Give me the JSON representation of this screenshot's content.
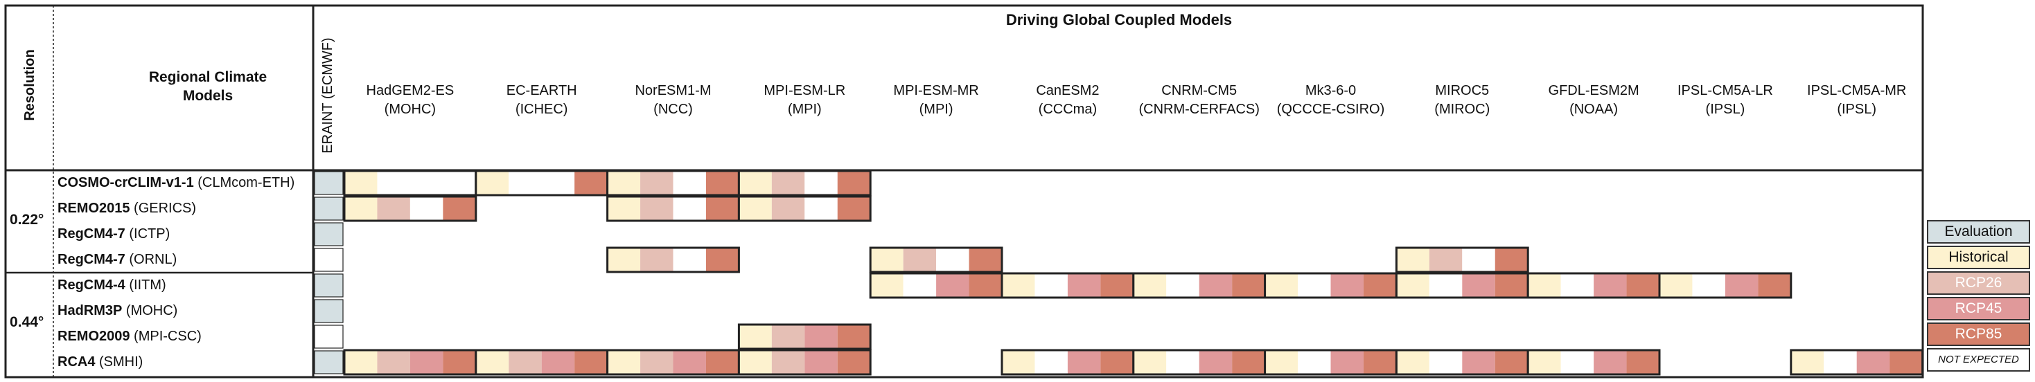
{
  "header": {
    "driving_title": "Driving Global Coupled Models",
    "resolution_label": "Resolution",
    "rcm_label_line1": "Regional Climate",
    "rcm_label_line2": "Models",
    "eraint_label": "ERAINT (ECMWF)"
  },
  "gcms": [
    {
      "name": "HadGEM2-ES",
      "inst": "(MOHC)"
    },
    {
      "name": "EC-EARTH",
      "inst": "(ICHEC)"
    },
    {
      "name": "NorESM1-M",
      "inst": "(NCC)"
    },
    {
      "name": "MPI-ESM-LR",
      "inst": "(MPI)"
    },
    {
      "name": "MPI-ESM-MR",
      "inst": "(MPI)"
    },
    {
      "name": "CanESM2",
      "inst": "(CCCma)"
    },
    {
      "name": "CNRM-CM5",
      "inst": "(CNRM-CERFACS)"
    },
    {
      "name": "Mk3-6-0",
      "inst": "(QCCCE-CSIRO)"
    },
    {
      "name": "MIROC5",
      "inst": "(MIROC)"
    },
    {
      "name": "GFDL-ESM2M",
      "inst": "(NOAA)"
    },
    {
      "name": "IPSL-CM5A-LR",
      "inst": "(IPSL)"
    },
    {
      "name": "IPSL-CM5A-MR",
      "inst": "(IPSL)"
    }
  ],
  "resolutions": [
    {
      "label": "0.22°"
    },
    {
      "label": "0.44°"
    }
  ],
  "rcms": [
    {
      "name": "COSMO-crCLIM-v1-1",
      "inst": "(CLMcom-ETH)",
      "eval": true,
      "cells": [
        [
          1,
          0,
          0,
          0
        ],
        [
          1,
          0,
          0,
          1
        ],
        [
          1,
          1,
          0,
          1
        ],
        [
          1,
          1,
          0,
          1
        ],
        null,
        null,
        null,
        null,
        null,
        null,
        null,
        null
      ]
    },
    {
      "name": "REMO2015",
      "inst": "(GERICS)",
      "eval": true,
      "cells": [
        [
          1,
          1,
          0,
          1
        ],
        null,
        [
          1,
          1,
          0,
          1
        ],
        [
          1,
          1,
          0,
          1
        ],
        null,
        null,
        null,
        null,
        null,
        null,
        null,
        null
      ]
    },
    {
      "name": "RegCM4-7",
      "inst": "(ICTP)",
      "eval": true,
      "cells": [
        null,
        null,
        null,
        null,
        null,
        null,
        null,
        null,
        null,
        null,
        null,
        null
      ]
    },
    {
      "name": "RegCM4-7",
      "inst": "(ORNL)",
      "eval": false,
      "cells": [
        null,
        null,
        [
          1,
          1,
          0,
          1
        ],
        null,
        [
          1,
          1,
          0,
          1
        ],
        null,
        null,
        null,
        [
          1,
          1,
          0,
          1
        ],
        null,
        null,
        null
      ]
    },
    {
      "name": "RegCM4-4",
      "inst": "(IITM)",
      "eval": true,
      "cells": [
        null,
        null,
        null,
        null,
        [
          1,
          0,
          1,
          1
        ],
        [
          1,
          0,
          1,
          1
        ],
        [
          1,
          0,
          1,
          1
        ],
        [
          1,
          0,
          1,
          1
        ],
        [
          1,
          0,
          1,
          1
        ],
        [
          1,
          0,
          1,
          1
        ],
        [
          1,
          0,
          1,
          1
        ],
        null
      ]
    },
    {
      "name": "HadRM3P",
      "inst": "(MOHC)",
      "eval": true,
      "cells": [
        null,
        null,
        null,
        null,
        null,
        null,
        null,
        null,
        null,
        null,
        null,
        null
      ]
    },
    {
      "name": "REMO2009",
      "inst": "(MPI-CSC)",
      "eval": false,
      "cells": [
        null,
        null,
        null,
        [
          1,
          1,
          1,
          1
        ],
        null,
        null,
        null,
        null,
        null,
        null,
        null,
        null
      ]
    },
    {
      "name": "RCA4",
      "inst": "(SMHI)",
      "eval": true,
      "cells": [
        [
          1,
          1,
          1,
          1
        ],
        [
          1,
          1,
          1,
          1
        ],
        [
          1,
          1,
          1,
          1
        ],
        [
          1,
          1,
          1,
          1
        ],
        null,
        [
          1,
          0,
          1,
          1
        ],
        [
          1,
          0,
          1,
          1
        ],
        [
          1,
          0,
          1,
          1
        ],
        [
          1,
          0,
          1,
          1
        ],
        [
          1,
          0,
          1,
          1
        ],
        null,
        [
          1,
          0,
          1,
          1
        ]
      ]
    }
  ],
  "legend": [
    {
      "label": "Evaluation",
      "color": "#d5e0e3",
      "text_color": "#111111"
    },
    {
      "label": "Historical",
      "color": "#fdf2cf",
      "text_color": "#111111"
    },
    {
      "label": "RCP26",
      "color": "#e5bfb5",
      "text_color": "#ffffff"
    },
    {
      "label": "RCP45",
      "color": "#e0999a",
      "text_color": "#ffffff"
    },
    {
      "label": "RCP85",
      "color": "#d4806a",
      "text_color": "#ffffff"
    },
    {
      "label": "NOT EXPECTED",
      "color": "#ffffff",
      "text_color": "#111111"
    }
  ],
  "colors": {
    "evaluation": "#d5e0e3",
    "historical": "#fdf2cf",
    "rcp26": "#e5bfb5",
    "rcp45": "#e0999a",
    "rcp85": "#d4806a",
    "border": "#222222"
  }
}
